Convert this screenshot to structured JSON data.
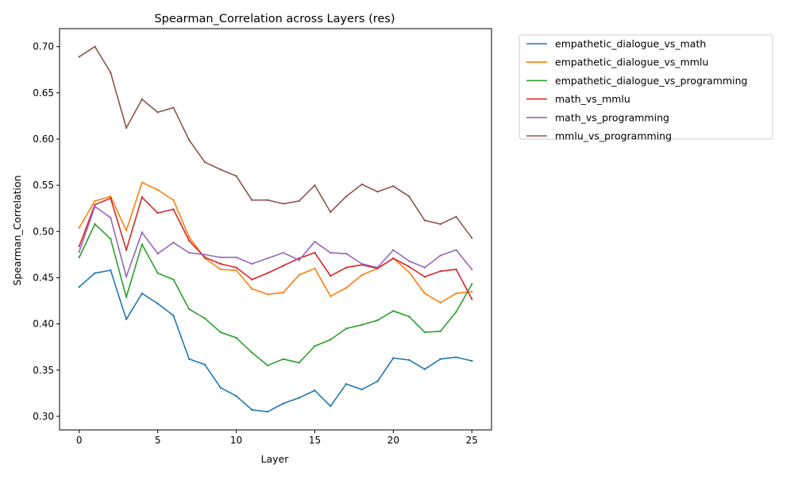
{
  "chart_data": {
    "type": "line",
    "title": "Spearman_Correlation across Layers (res)",
    "xlabel": "Layer",
    "ylabel": "Spearman_Correlation",
    "xlim": [
      -1.25,
      26.25
    ],
    "ylim": [
      0.2853,
      0.7195
    ],
    "xticks": [
      0,
      5,
      10,
      15,
      20,
      25
    ],
    "xtick_labels": [
      "0",
      "5",
      "10",
      "15",
      "20",
      "25"
    ],
    "yticks": [
      0.3,
      0.35,
      0.4,
      0.45,
      0.5,
      0.55,
      0.6,
      0.65,
      0.7
    ],
    "ytick_labels": [
      "0.30",
      "0.35",
      "0.40",
      "0.45",
      "0.50",
      "0.55",
      "0.60",
      "0.65",
      "0.70"
    ],
    "grid": false,
    "legend_position": "outside-right-top",
    "x": [
      0,
      1,
      2,
      3,
      4,
      5,
      6,
      7,
      8,
      9,
      10,
      11,
      12,
      13,
      14,
      15,
      16,
      17,
      18,
      19,
      20,
      21,
      22,
      23,
      24,
      25
    ],
    "series": [
      {
        "name": "empathetic_dialogue_vs_math",
        "color": "#1f77b4",
        "values": [
          0.44,
          0.455,
          0.458,
          0.405,
          0.433,
          0.422,
          0.409,
          0.362,
          0.356,
          0.331,
          0.322,
          0.307,
          0.305,
          0.314,
          0.32,
          0.328,
          0.311,
          0.335,
          0.329,
          0.338,
          0.363,
          0.361,
          0.351,
          0.362,
          0.364,
          0.36
        ]
      },
      {
        "name": "empathetic_dialogue_vs_mmlu",
        "color": "#ff7f0e",
        "values": [
          0.504,
          0.533,
          0.538,
          0.501,
          0.553,
          0.545,
          0.534,
          0.494,
          0.471,
          0.459,
          0.458,
          0.438,
          0.432,
          0.434,
          0.453,
          0.46,
          0.43,
          0.439,
          0.453,
          0.46,
          0.471,
          0.456,
          0.433,
          0.423,
          0.433,
          0.435
        ]
      },
      {
        "name": "empathetic_dialogue_vs_programming",
        "color": "#2ca02c",
        "values": [
          0.472,
          0.508,
          0.492,
          0.429,
          0.486,
          0.455,
          0.448,
          0.416,
          0.406,
          0.391,
          0.385,
          0.369,
          0.355,
          0.362,
          0.358,
          0.376,
          0.383,
          0.395,
          0.399,
          0.404,
          0.414,
          0.408,
          0.391,
          0.392,
          0.413,
          0.443
        ]
      },
      {
        "name": "math_vs_mmlu",
        "color": "#d62728",
        "values": [
          0.484,
          0.529,
          0.536,
          0.48,
          0.537,
          0.52,
          0.524,
          0.49,
          0.472,
          0.465,
          0.461,
          0.448,
          0.455,
          0.463,
          0.471,
          0.477,
          0.452,
          0.461,
          0.464,
          0.46,
          0.471,
          0.462,
          0.451,
          0.457,
          0.459,
          0.427
        ]
      },
      {
        "name": "math_vs_programming",
        "color": "#9467bd",
        "values": [
          0.478,
          0.527,
          0.515,
          0.451,
          0.499,
          0.476,
          0.488,
          0.477,
          0.475,
          0.472,
          0.472,
          0.465,
          0.471,
          0.477,
          0.469,
          0.489,
          0.477,
          0.476,
          0.465,
          0.461,
          0.48,
          0.468,
          0.461,
          0.474,
          0.48,
          0.459
        ]
      },
      {
        "name": "mmlu_vs_programming",
        "color": "#8c564b",
        "values": [
          0.689,
          0.7,
          0.672,
          0.612,
          0.643,
          0.629,
          0.634,
          0.599,
          0.575,
          0.567,
          0.56,
          0.534,
          0.534,
          0.53,
          0.533,
          0.55,
          0.521,
          0.538,
          0.551,
          0.543,
          0.549,
          0.538,
          0.512,
          0.508,
          0.516,
          0.493
        ]
      }
    ]
  }
}
